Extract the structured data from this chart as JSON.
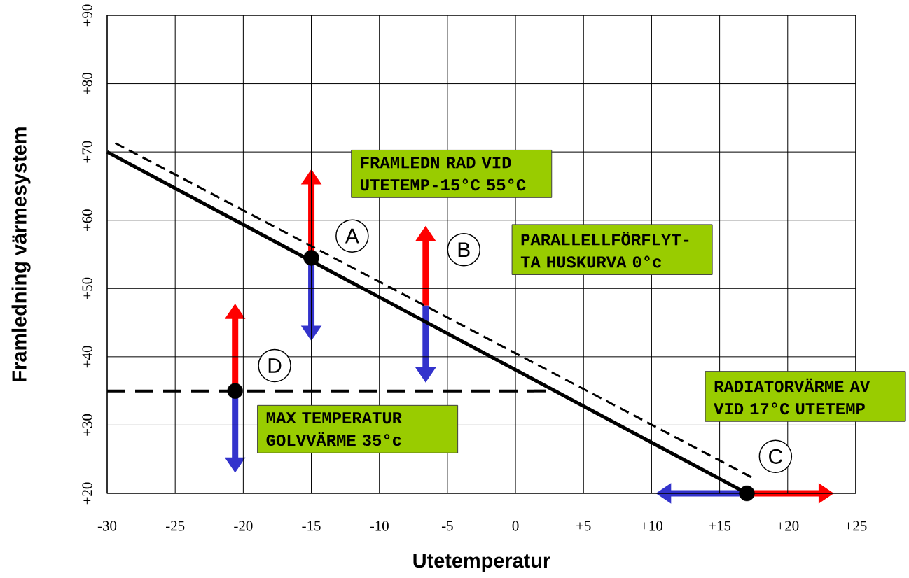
{
  "chart_data": {
    "type": "line",
    "xlabel": "Utetemperatur",
    "ylabel": "Framledning värmesystem",
    "xlim": [
      -30,
      25
    ],
    "ylim": [
      20,
      90
    ],
    "xticks": [
      -30,
      -25,
      -20,
      -15,
      -10,
      -5,
      0,
      {
        "value": 5,
        "label": "+5"
      },
      {
        "value": 10,
        "label": "+10"
      },
      {
        "value": 15,
        "label": "+15"
      },
      {
        "value": 20,
        "label": "+20"
      },
      {
        "value": 25,
        "label": "+25"
      }
    ],
    "yticks": [
      {
        "value": 20,
        "label": "+20"
      },
      {
        "value": 30,
        "label": "+30"
      },
      {
        "value": 40,
        "label": "+40"
      },
      {
        "value": 50,
        "label": "+50"
      },
      {
        "value": 60,
        "label": "+60"
      },
      {
        "value": 70,
        "label": "+70"
      },
      {
        "value": 80,
        "label": "+80"
      },
      {
        "value": 90,
        "label": "+90"
      }
    ],
    "grid": true,
    "series": [
      {
        "color": "#000000",
        "line_style": "solid",
        "x": [
          -30,
          17
        ],
        "values": [
          70,
          20
        ]
      },
      {
        "color": "#000000",
        "line_style": "dashed",
        "x": [
          -29.4,
          17.4
        ],
        "values": [
          71.3,
          22.3
        ]
      },
      {
        "color": "#000000",
        "line_style": "dashed",
        "x": [
          -30,
          2.8
        ],
        "values": [
          35,
          35
        ]
      },
      {
        "type": "scatter",
        "color": "#000000",
        "marker": "circle",
        "x": [
          -15,
          17,
          -20.6
        ],
        "values": [
          54.5,
          20,
          35
        ]
      }
    ],
    "annotations": [
      "A",
      "B",
      "C",
      "D",
      "FRAMLEDN RAD VID UTETEMP-15°C 55°C",
      "PARALLELLFÖRFLYT-TA HUSKURVA 0°c",
      "RADIATORVÄRME AV VID 17°C UTETEMP",
      "MAX TEMPERATUR GOLVVÄRME 35°c"
    ]
  }
}
